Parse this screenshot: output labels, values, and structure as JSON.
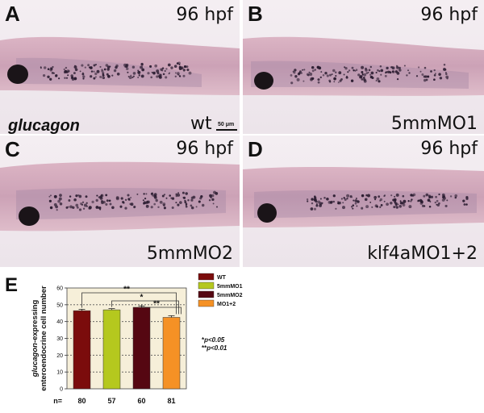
{
  "panels": [
    {
      "letter": "A",
      "stage": "96 hpf",
      "condition": "wt"
    },
    {
      "letter": "B",
      "stage": "96 hpf",
      "condition": "5mmMO1"
    },
    {
      "letter": "C",
      "stage": "96 hpf",
      "condition": "5mmMO2"
    },
    {
      "letter": "D",
      "stage": "96 hpf",
      "condition": "klf4aMO1+2"
    }
  ],
  "gene_label": "glucagon",
  "scale_label": "50 μm",
  "chart_data": {
    "type": "bar",
    "panel_letter": "E",
    "categories": [
      "WT",
      "5mmMO1",
      "5mmMO2",
      "MO1+2"
    ],
    "values": [
      46.5,
      47,
      48.5,
      42.5
    ],
    "errors": [
      0.8,
      0.7,
      0.8,
      1.0
    ],
    "colors": [
      "#7b0c0c",
      "#b5c81e",
      "#550712",
      "#f59125"
    ],
    "ylabel_gene": "glucagon",
    "ylabel_rest": "-expressing",
    "ylabel_line2": "enteroendocrine cell number",
    "ylim": [
      0,
      60
    ],
    "yticks": [
      0,
      10,
      20,
      30,
      40,
      50,
      60
    ],
    "n_prefix": "n=",
    "n_values": [
      "80",
      "57",
      "60",
      "81"
    ],
    "significance": [
      {
        "from": 0,
        "to": 3,
        "label": "**"
      },
      {
        "from": 1,
        "to": 3,
        "label": "*"
      },
      {
        "from": 2,
        "to": 3,
        "label": "**"
      }
    ],
    "legend": [
      "WT",
      "5mmMO1",
      "5mmMO2",
      "MO1+2"
    ],
    "legend_position": "right",
    "pvalue_notes": [
      {
        "stars": "*",
        "text": "p<0.05"
      },
      {
        "stars": "**",
        "text": "p<0.01"
      }
    ]
  }
}
